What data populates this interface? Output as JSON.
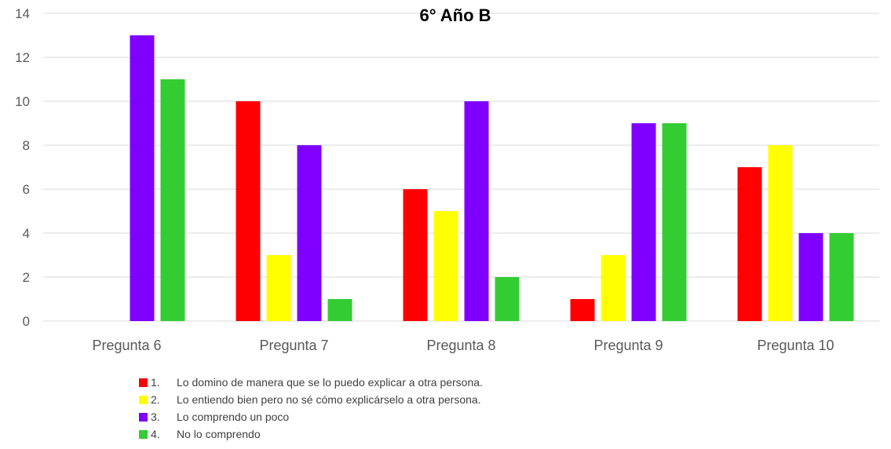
{
  "chart_data": {
    "type": "bar",
    "title": "6° Año B",
    "categories": [
      "Pregunta 6",
      "Pregunta 7",
      "Pregunta 8",
      "Pregunta 9",
      "Pregunta 10"
    ],
    "series": [
      {
        "name": "Lo domino de manera que se lo puedo explicar a otra persona.",
        "number": "1.",
        "color": "#ff0000",
        "values": [
          0,
          10,
          6,
          1,
          7
        ]
      },
      {
        "name": "Lo entiendo bien pero no sé cómo explicárselo a otra persona.",
        "number": "2.",
        "color": "#ffff00",
        "values": [
          0,
          3,
          5,
          3,
          8
        ]
      },
      {
        "name": "Lo comprendo un poco",
        "number": "3.",
        "color": "#7f00ff",
        "values": [
          13,
          8,
          10,
          9,
          4
        ]
      },
      {
        "name": "No lo comprendo",
        "number": "4.",
        "color": "#33cc33",
        "values": [
          11,
          1,
          2,
          9,
          4
        ]
      }
    ],
    "ylim": [
      0,
      14
    ],
    "yticks": [
      0,
      2,
      4,
      6,
      8,
      10,
      12,
      14
    ],
    "grid": true,
    "legend_position": "bottom"
  }
}
